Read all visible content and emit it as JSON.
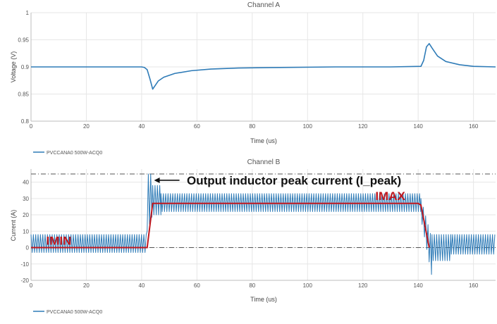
{
  "colors": {
    "trace": "#2e7bb7",
    "idealized": "#c0181f",
    "refline": "#555555",
    "annotation_text": "#111111",
    "grid": "#e6e6e6"
  },
  "chart_data": [
    {
      "type": "line",
      "title": "Channel A",
      "xlabel": "Time (us)",
      "ylabel": "Voltage (V)",
      "xlim": [
        0,
        168
      ],
      "ylim": [
        0.8,
        1
      ],
      "x_ticks": [
        0,
        20,
        40,
        60,
        80,
        100,
        120,
        140,
        160
      ],
      "y_ticks": [
        0.8,
        0.85,
        0.9,
        0.95,
        1
      ],
      "y_tick_labels": [
        "0.8",
        "0.85",
        "0.9",
        "0.95",
        "1"
      ],
      "grid": true,
      "legend": {
        "position": "bottom-left",
        "entries": [
          "PVCCANA0 500W-ACQ0"
        ]
      },
      "series": [
        {
          "name": "PVCCANA0 500W-ACQ0",
          "x": [
            0,
            20,
            40,
            41,
            42,
            43,
            44,
            46,
            48,
            52,
            58,
            65,
            75,
            90,
            110,
            130,
            141,
            142,
            143,
            144,
            145,
            147,
            150,
            155,
            160,
            168
          ],
          "y": [
            0.9,
            0.9,
            0.9,
            0.899,
            0.895,
            0.878,
            0.859,
            0.874,
            0.881,
            0.888,
            0.893,
            0.896,
            0.898,
            0.899,
            0.9,
            0.9,
            0.901,
            0.912,
            0.937,
            0.943,
            0.935,
            0.92,
            0.91,
            0.904,
            0.901,
            0.9
          ]
        }
      ]
    },
    {
      "type": "line",
      "title": "Channel B",
      "xlabel": "Time (us)",
      "ylabel": "Current (A)",
      "xlim": [
        0,
        168
      ],
      "ylim": [
        -20,
        48
      ],
      "x_ticks": [
        0,
        20,
        40,
        60,
        80,
        100,
        120,
        140,
        160
      ],
      "y_ticks": [
        -20,
        -10,
        0,
        10,
        20,
        30,
        40
      ],
      "grid": true,
      "legend": {
        "position": "bottom-left",
        "entries": [
          "PVCCANA0 500W-ACQ0"
        ]
      },
      "reference_lines": [
        {
          "y": 45,
          "style": "dash-dot"
        },
        {
          "y": 0,
          "style": "dash-dot"
        }
      ],
      "series": [
        {
          "name": "PVCCANA0 500W-ACQ0",
          "style": "switching-ripple",
          "segments": [
            {
              "x_start": 0,
              "x_end": 42,
              "low": -3,
              "high": 8
            },
            {
              "x_start": 42,
              "x_end": 44,
              "low": 10,
              "high": 45
            },
            {
              "x_start": 44,
              "x_end": 47,
              "low": 20,
              "high": 38
            },
            {
              "x_start": 47,
              "x_end": 141,
              "low": 22,
              "high": 33
            },
            {
              "x_start": 141,
              "x_end": 145,
              "low": -18,
              "high": 30
            },
            {
              "x_start": 145,
              "x_end": 152,
              "low": -8,
              "high": 8
            },
            {
              "x_start": 152,
              "x_end": 168,
              "low": -4,
              "high": 8
            }
          ],
          "peak": {
            "x": 44,
            "y": 45
          }
        },
        {
          "name": "",
          "color_key": "idealized",
          "x": [
            0,
            42,
            44,
            140,
            141,
            144
          ],
          "y": [
            0,
            0,
            27,
            27,
            26,
            0
          ]
        }
      ],
      "annotations": [
        {
          "text": "Output inductor peak current (I_peak)",
          "x": 44,
          "y": 45
        },
        {
          "text": "IMAX",
          "x": 125,
          "y": 27
        },
        {
          "text": "IMIN",
          "x": 6,
          "y": 0
        }
      ]
    }
  ]
}
